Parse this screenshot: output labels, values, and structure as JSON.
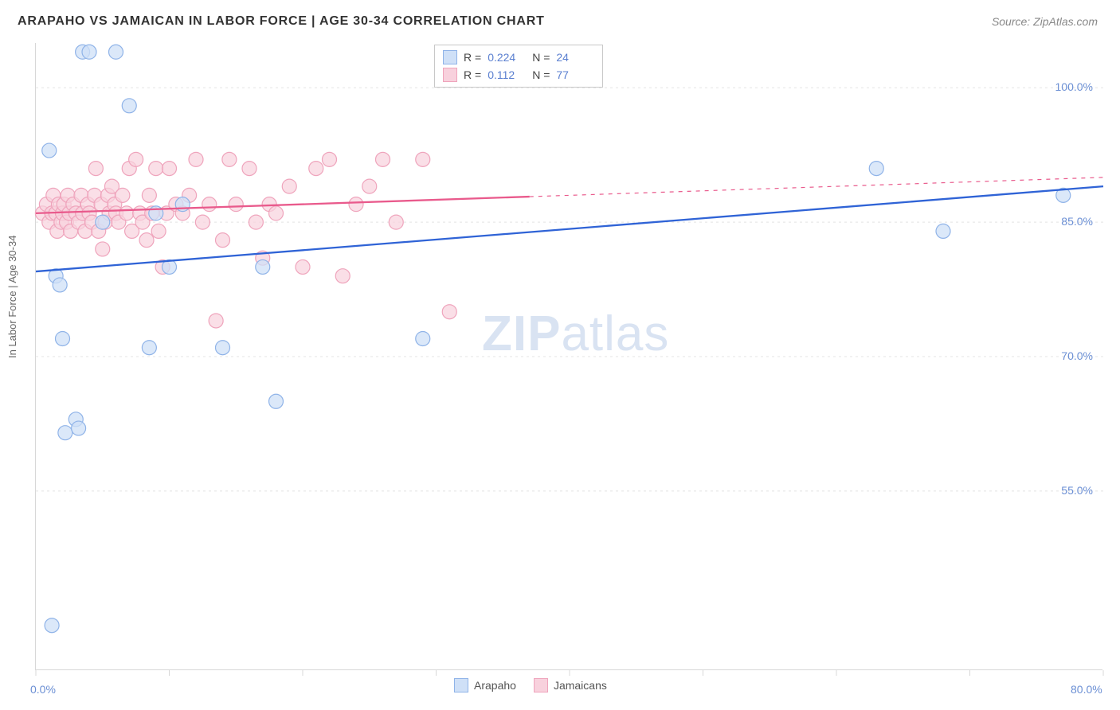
{
  "header": {
    "title": "ARAPAHO VS JAMAICAN IN LABOR FORCE | AGE 30-34 CORRELATION CHART",
    "source": "Source: ZipAtlas.com"
  },
  "chart": {
    "type": "scatter",
    "background_color": "#ffffff",
    "grid_color": "#e4e4e4",
    "axis_color": "#d8d8d8",
    "tick_label_color": "#6b8fd4",
    "axis_label_color": "#666666",
    "ylabel": "In Labor Force | Age 30-34",
    "ylabel_fontsize": 13,
    "xlim": [
      0,
      80
    ],
    "ylim": [
      35,
      105
    ],
    "ytick_step": 15,
    "yticks": [
      55,
      70,
      85,
      100
    ],
    "ytick_labels": [
      "55.0%",
      "70.0%",
      "85.0%",
      "100.0%"
    ],
    "xticks": [
      0,
      10,
      20,
      30,
      40,
      50,
      60,
      70,
      80
    ],
    "xtick_labels_shown": {
      "0": "0.0%",
      "80": "80.0%"
    },
    "watermark": {
      "text_bold": "ZIP",
      "text_rest": "atlas",
      "color": "#d9e3f2",
      "fontsize": 62
    },
    "series": [
      {
        "name": "Arapaho",
        "marker_color_fill": "#cfe0f7",
        "marker_color_stroke": "#8fb3e8",
        "marker_radius": 9,
        "marker_opacity": 0.75,
        "line_color": "#2f63d6",
        "line_width": 2.3,
        "trend_start": [
          0,
          79.5
        ],
        "trend_end": [
          80,
          89
        ],
        "points": [
          [
            1,
            93
          ],
          [
            1.5,
            79
          ],
          [
            1.8,
            78
          ],
          [
            1.2,
            40
          ],
          [
            2,
            72
          ],
          [
            2.2,
            61.5
          ],
          [
            3,
            63
          ],
          [
            3.2,
            62
          ],
          [
            3.5,
            104
          ],
          [
            4,
            104
          ],
          [
            5,
            85
          ],
          [
            6,
            104
          ],
          [
            7,
            98
          ],
          [
            8.5,
            71
          ],
          [
            9,
            86
          ],
          [
            10,
            80
          ],
          [
            11,
            87
          ],
          [
            14,
            71
          ],
          [
            17,
            80
          ],
          [
            18,
            65
          ],
          [
            29,
            72
          ],
          [
            63,
            91
          ],
          [
            68,
            84
          ],
          [
            77,
            88
          ]
        ],
        "R": "0.224",
        "N": "24"
      },
      {
        "name": "Jamaicans",
        "marker_color_fill": "#f8d1dd",
        "marker_color_stroke": "#efa4bc",
        "marker_radius": 9,
        "marker_opacity": 0.7,
        "line_color": "#e95a8c",
        "line_width": 2.3,
        "line_dash_after": 37,
        "trend_start": [
          0,
          86
        ],
        "trend_end": [
          80,
          90
        ],
        "points": [
          [
            0.5,
            86
          ],
          [
            0.8,
            87
          ],
          [
            1,
            85
          ],
          [
            1.2,
            86
          ],
          [
            1.3,
            88
          ],
          [
            1.5,
            86
          ],
          [
            1.6,
            84
          ],
          [
            1.7,
            87
          ],
          [
            1.9,
            85
          ],
          [
            2,
            86
          ],
          [
            2.1,
            87
          ],
          [
            2.3,
            85
          ],
          [
            2.4,
            88
          ],
          [
            2.5,
            86
          ],
          [
            2.6,
            84
          ],
          [
            2.8,
            87
          ],
          [
            3,
            86
          ],
          [
            3.2,
            85
          ],
          [
            3.4,
            88
          ],
          [
            3.5,
            86
          ],
          [
            3.7,
            84
          ],
          [
            3.9,
            87
          ],
          [
            4,
            86
          ],
          [
            4.2,
            85
          ],
          [
            4.4,
            88
          ],
          [
            4.5,
            91
          ],
          [
            4.7,
            84
          ],
          [
            4.9,
            87
          ],
          [
            5,
            82
          ],
          [
            5.2,
            85
          ],
          [
            5.4,
            88
          ],
          [
            5.5,
            86
          ],
          [
            5.7,
            89
          ],
          [
            5.9,
            87
          ],
          [
            6,
            86
          ],
          [
            6.2,
            85
          ],
          [
            6.5,
            88
          ],
          [
            6.8,
            86
          ],
          [
            7,
            91
          ],
          [
            7.2,
            84
          ],
          [
            7.5,
            92
          ],
          [
            7.8,
            86
          ],
          [
            8,
            85
          ],
          [
            8.3,
            83
          ],
          [
            8.5,
            88
          ],
          [
            8.7,
            86
          ],
          [
            9,
            91
          ],
          [
            9.2,
            84
          ],
          [
            9.5,
            80
          ],
          [
            9.8,
            86
          ],
          [
            10,
            91
          ],
          [
            10.5,
            87
          ],
          [
            11,
            86
          ],
          [
            11.5,
            88
          ],
          [
            12,
            92
          ],
          [
            12.5,
            85
          ],
          [
            13,
            87
          ],
          [
            13.5,
            74
          ],
          [
            14,
            83
          ],
          [
            14.5,
            92
          ],
          [
            15,
            87
          ],
          [
            16,
            91
          ],
          [
            16.5,
            85
          ],
          [
            17,
            81
          ],
          [
            17.5,
            87
          ],
          [
            18,
            86
          ],
          [
            19,
            89
          ],
          [
            20,
            80
          ],
          [
            21,
            91
          ],
          [
            22,
            92
          ],
          [
            23,
            79
          ],
          [
            24,
            87
          ],
          [
            25,
            89
          ],
          [
            26,
            92
          ],
          [
            27,
            85
          ],
          [
            29,
            92
          ],
          [
            31,
            75
          ]
        ],
        "R": "0.112",
        "N": "77"
      }
    ],
    "legend_bottom": [
      {
        "label": "Arapaho",
        "fill": "#cfe0f7",
        "stroke": "#8fb3e8"
      },
      {
        "label": "Jamaicans",
        "fill": "#f8d1dd",
        "stroke": "#efa4bc"
      }
    ]
  }
}
